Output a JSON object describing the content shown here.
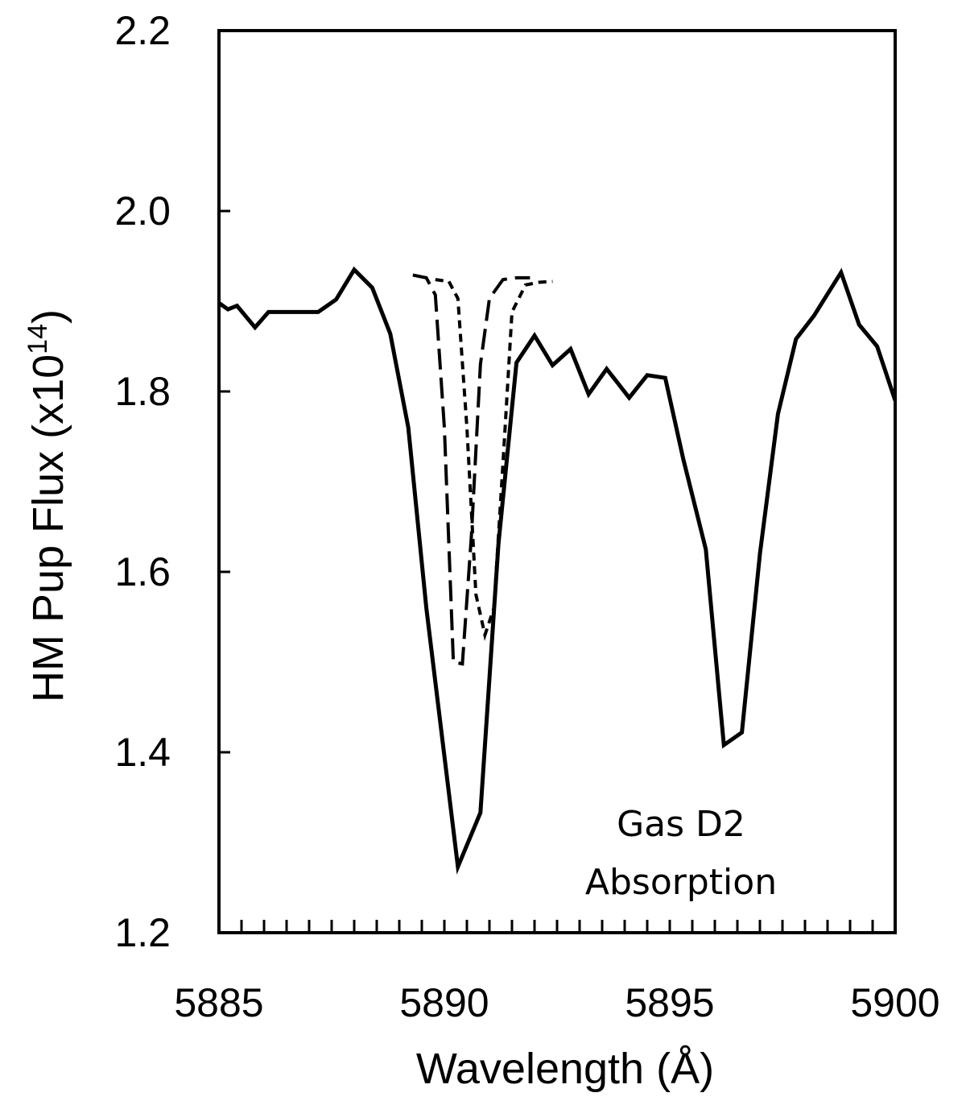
{
  "chart_data": {
    "type": "line",
    "title": "",
    "xlabel": "Wavelength (Å)",
    "ylabel_main": "HM Pup Flux (x10",
    "ylabel_sup": "14",
    "ylabel_close": ")",
    "xlim": [
      5885,
      5900
    ],
    "ylim": [
      1.2,
      2.2
    ],
    "xticks": [
      5885,
      5890,
      5895,
      5900
    ],
    "xtick_labels": [
      "5885",
      "5890",
      "5895",
      "5900"
    ],
    "yticks": [
      1.2,
      1.4,
      1.6,
      1.8,
      2.0,
      2.2
    ],
    "ytick_labels": [
      "1.2",
      "1.4",
      "1.6",
      "1.8",
      "2.0",
      "2.2"
    ],
    "x_minor_step": 0.5,
    "grid": false,
    "annotations": [
      "Gas D2",
      "Absorption"
    ],
    "series": [
      {
        "style": "solid",
        "color": "#000000",
        "x": [
          5885.0,
          5885.2,
          5885.4,
          5885.8,
          5886.1,
          5886.6,
          5887.2,
          5887.6,
          5888.0,
          5888.4,
          5888.8,
          5889.2,
          5889.6,
          5890.3,
          5890.8,
          5891.2,
          5891.6,
          5892.0,
          5892.4,
          5892.8,
          5893.2,
          5893.6,
          5894.1,
          5894.5,
          5894.9,
          5895.3,
          5895.8,
          5896.2,
          5896.6,
          5897.0,
          5897.4,
          5897.8,
          5898.2,
          5898.8,
          5899.2,
          5899.6,
          5900.0
        ],
        "y": [
          1.898,
          1.891,
          1.895,
          1.871,
          1.888,
          1.888,
          1.888,
          1.902,
          1.935,
          1.915,
          1.864,
          1.76,
          1.56,
          1.273,
          1.333,
          1.631,
          1.832,
          1.862,
          1.829,
          1.847,
          1.797,
          1.825,
          1.793,
          1.818,
          1.815,
          1.725,
          1.625,
          1.408,
          1.422,
          1.62,
          1.775,
          1.858,
          1.884,
          1.932,
          1.874,
          1.85,
          1.79
        ]
      },
      {
        "style": "long-dash",
        "color": "#000000",
        "x": [
          5889.3,
          5889.6,
          5889.8,
          5890.0,
          5890.2,
          5890.4,
          5890.6,
          5890.8,
          5891.0,
          5891.3,
          5891.6,
          5891.9
        ],
        "y": [
          1.929,
          1.926,
          1.907,
          1.76,
          1.5,
          1.498,
          1.64,
          1.83,
          1.903,
          1.924,
          1.926,
          1.926
        ]
      },
      {
        "style": "short-dash",
        "color": "#000000",
        "x": [
          5889.8,
          5890.1,
          5890.3,
          5890.5,
          5890.7,
          5890.9,
          5891.1,
          5891.3,
          5891.5,
          5891.8,
          5892.1,
          5892.4
        ],
        "y": [
          1.924,
          1.922,
          1.903,
          1.76,
          1.575,
          1.53,
          1.56,
          1.72,
          1.888,
          1.918,
          1.921,
          1.922
        ]
      }
    ]
  }
}
